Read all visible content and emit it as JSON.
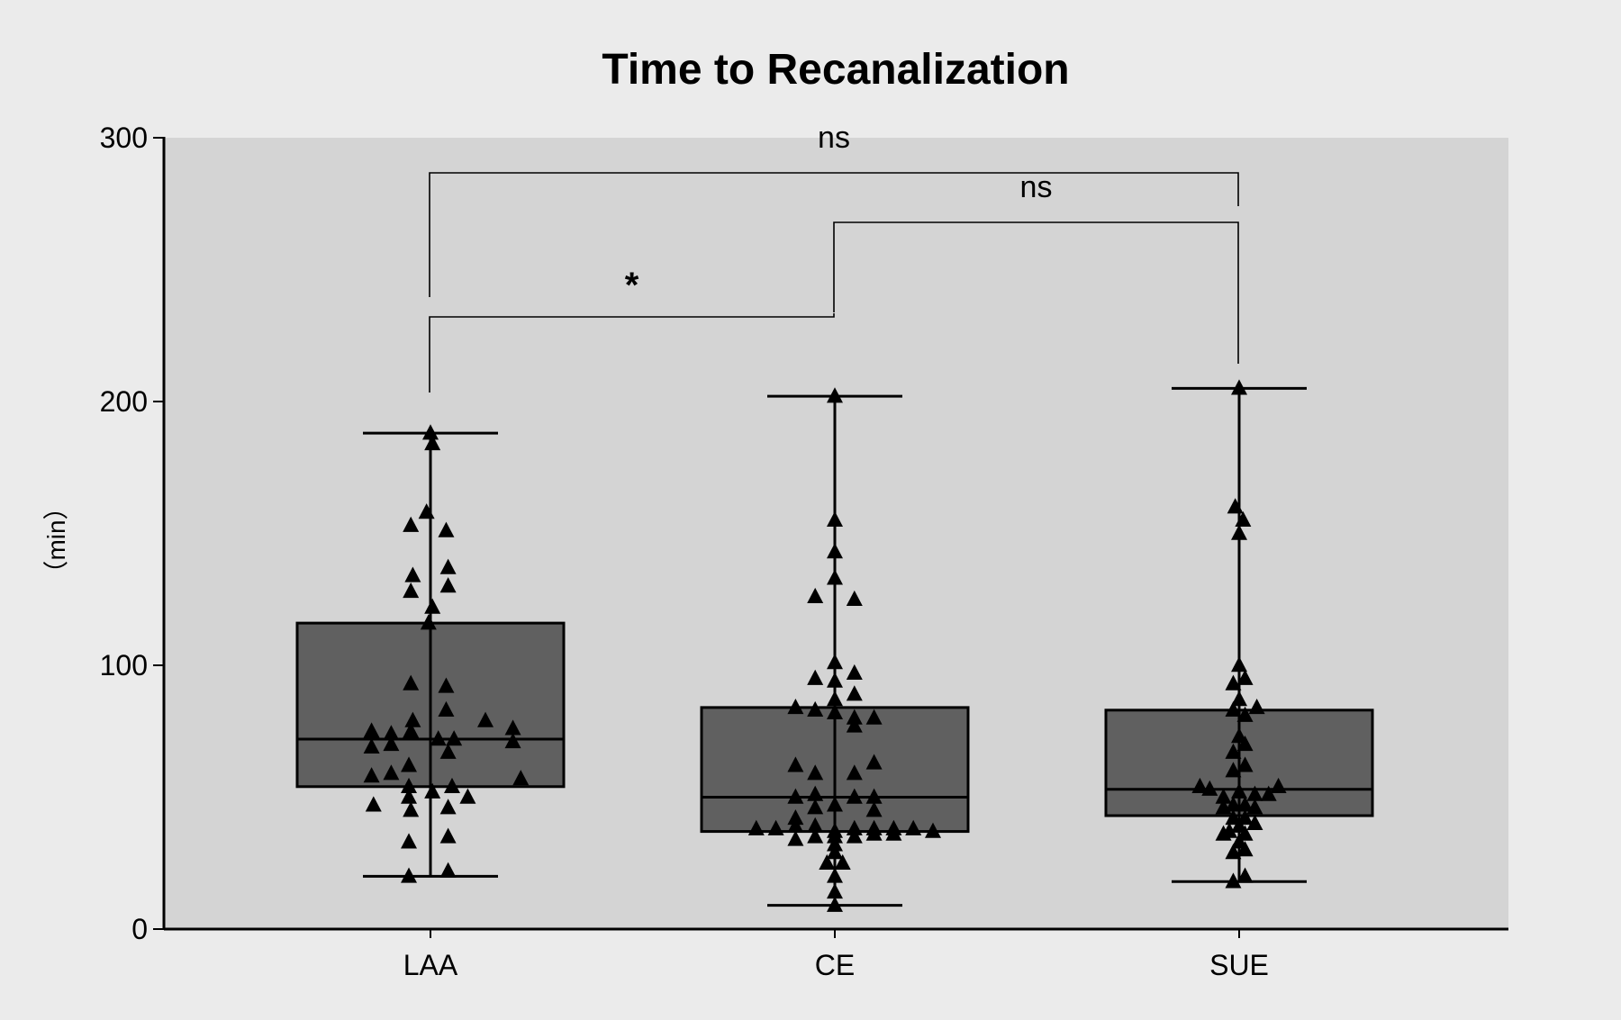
{
  "chart_data": {
    "type": "box",
    "title": "Time to Recanalization",
    "xlabel": "",
    "ylabel": "（min）",
    "ylim": [
      0,
      300
    ],
    "yticks": [
      0,
      100,
      200,
      300
    ],
    "categories": [
      "LAA",
      "CE",
      "SUE"
    ],
    "colors": {
      "page_background": "#ebebeb",
      "plot_background": "#d4d4d4",
      "box_fill": "#606060",
      "marker": "#000000",
      "line": "#000000"
    },
    "marker_shape": "triangle",
    "boxes": [
      {
        "category": "LAA",
        "min": 20,
        "q1": 54,
        "median": 72,
        "q3": 116,
        "max": 188,
        "points": [
          [
            0.0,
            188
          ],
          [
            0.01,
            184
          ],
          [
            -0.02,
            158
          ],
          [
            0.08,
            151
          ],
          [
            -0.1,
            153
          ],
          [
            -0.09,
            134
          ],
          [
            0.09,
            137
          ],
          [
            0.09,
            130
          ],
          [
            -0.1,
            128
          ],
          [
            0.01,
            122
          ],
          [
            -0.01,
            116
          ],
          [
            0.08,
            92
          ],
          [
            -0.1,
            93
          ],
          [
            0.08,
            83
          ],
          [
            -0.09,
            79
          ],
          [
            0.28,
            79
          ],
          [
            0.42,
            76
          ],
          [
            -0.1,
            75
          ],
          [
            -0.3,
            75
          ],
          [
            -0.2,
            74
          ],
          [
            0.04,
            72
          ],
          [
            0.12,
            72
          ],
          [
            0.42,
            71
          ],
          [
            -0.3,
            69
          ],
          [
            -0.2,
            70
          ],
          [
            0.09,
            67
          ],
          [
            -0.11,
            62
          ],
          [
            -0.3,
            58
          ],
          [
            -0.2,
            59
          ],
          [
            0.46,
            57
          ],
          [
            0.11,
            54
          ],
          [
            -0.11,
            54
          ],
          [
            0.01,
            52
          ],
          [
            0.19,
            50
          ],
          [
            -0.11,
            50
          ],
          [
            -0.29,
            47
          ],
          [
            0.09,
            46
          ],
          [
            -0.1,
            45
          ],
          [
            0.09,
            35
          ],
          [
            -0.11,
            33
          ],
          [
            0.09,
            22
          ],
          [
            -0.11,
            20
          ]
        ]
      },
      {
        "category": "CE",
        "min": 9,
        "q1": 37,
        "median": 50,
        "q3": 84,
        "max": 202,
        "points": [
          [
            0.0,
            202
          ],
          [
            0.0,
            155
          ],
          [
            0.0,
            143
          ],
          [
            0.0,
            133
          ],
          [
            -0.1,
            126
          ],
          [
            0.1,
            125
          ],
          [
            0.0,
            101
          ],
          [
            -0.1,
            95
          ],
          [
            0.1,
            97
          ],
          [
            0.0,
            94
          ],
          [
            0.1,
            89
          ],
          [
            0.0,
            87
          ],
          [
            -0.2,
            84
          ],
          [
            -0.1,
            83
          ],
          [
            0.0,
            82
          ],
          [
            0.1,
            80
          ],
          [
            0.2,
            80
          ],
          [
            0.1,
            77
          ],
          [
            -0.2,
            62
          ],
          [
            0.2,
            63
          ],
          [
            -0.1,
            59
          ],
          [
            0.1,
            59
          ],
          [
            -0.2,
            50
          ],
          [
            -0.1,
            51
          ],
          [
            0.1,
            50
          ],
          [
            0.2,
            50
          ],
          [
            0.0,
            47
          ],
          [
            -0.1,
            46
          ],
          [
            0.2,
            45
          ],
          [
            -0.2,
            42
          ],
          [
            -0.3,
            38
          ],
          [
            -0.4,
            38
          ],
          [
            -0.2,
            39
          ],
          [
            -0.1,
            39
          ],
          [
            0.0,
            37
          ],
          [
            0.1,
            38
          ],
          [
            0.2,
            38
          ],
          [
            0.3,
            38
          ],
          [
            0.4,
            38
          ],
          [
            0.5,
            37
          ],
          [
            -0.2,
            34
          ],
          [
            -0.1,
            35
          ],
          [
            0.0,
            35
          ],
          [
            0.1,
            35
          ],
          [
            0.2,
            36
          ],
          [
            0.3,
            36
          ],
          [
            0.0,
            32
          ],
          [
            0.0,
            29
          ],
          [
            -0.04,
            25
          ],
          [
            0.04,
            25
          ],
          [
            0.0,
            20
          ],
          [
            0.0,
            14
          ],
          [
            0.0,
            9
          ]
        ]
      },
      {
        "category": "SUE",
        "min": 18,
        "q1": 43,
        "median": 53,
        "q3": 83,
        "max": 205,
        "points": [
          [
            0.0,
            205
          ],
          [
            -0.02,
            160
          ],
          [
            0.02,
            155
          ],
          [
            0.0,
            150
          ],
          [
            0.0,
            100
          ],
          [
            -0.03,
            93
          ],
          [
            0.03,
            95
          ],
          [
            0.0,
            87
          ],
          [
            -0.03,
            83
          ],
          [
            0.03,
            81
          ],
          [
            0.09,
            84
          ],
          [
            0.0,
            73
          ],
          [
            0.03,
            70
          ],
          [
            -0.03,
            67
          ],
          [
            0.03,
            62
          ],
          [
            -0.03,
            60
          ],
          [
            -0.2,
            54
          ],
          [
            -0.15,
            53
          ],
          [
            0.2,
            54
          ],
          [
            -0.08,
            50
          ],
          [
            0.0,
            52
          ],
          [
            0.08,
            51
          ],
          [
            0.15,
            51
          ],
          [
            -0.03,
            47
          ],
          [
            0.03,
            47
          ],
          [
            -0.08,
            46
          ],
          [
            0.08,
            46
          ],
          [
            -0.03,
            42
          ],
          [
            0.03,
            42
          ],
          [
            0.08,
            40
          ],
          [
            -0.05,
            37
          ],
          [
            0.0,
            39
          ],
          [
            0.03,
            36
          ],
          [
            -0.08,
            36
          ],
          [
            0.0,
            33
          ],
          [
            -0.03,
            29
          ],
          [
            0.03,
            30
          ],
          [
            -0.03,
            18
          ],
          [
            0.03,
            20
          ]
        ]
      }
    ],
    "annotations": [
      {
        "from": "LAA",
        "to": "CE",
        "label": "*"
      },
      {
        "from": "CE",
        "to": "SUE",
        "label": "ns"
      },
      {
        "from": "LAA",
        "to": "SUE",
        "label": "ns"
      }
    ]
  }
}
